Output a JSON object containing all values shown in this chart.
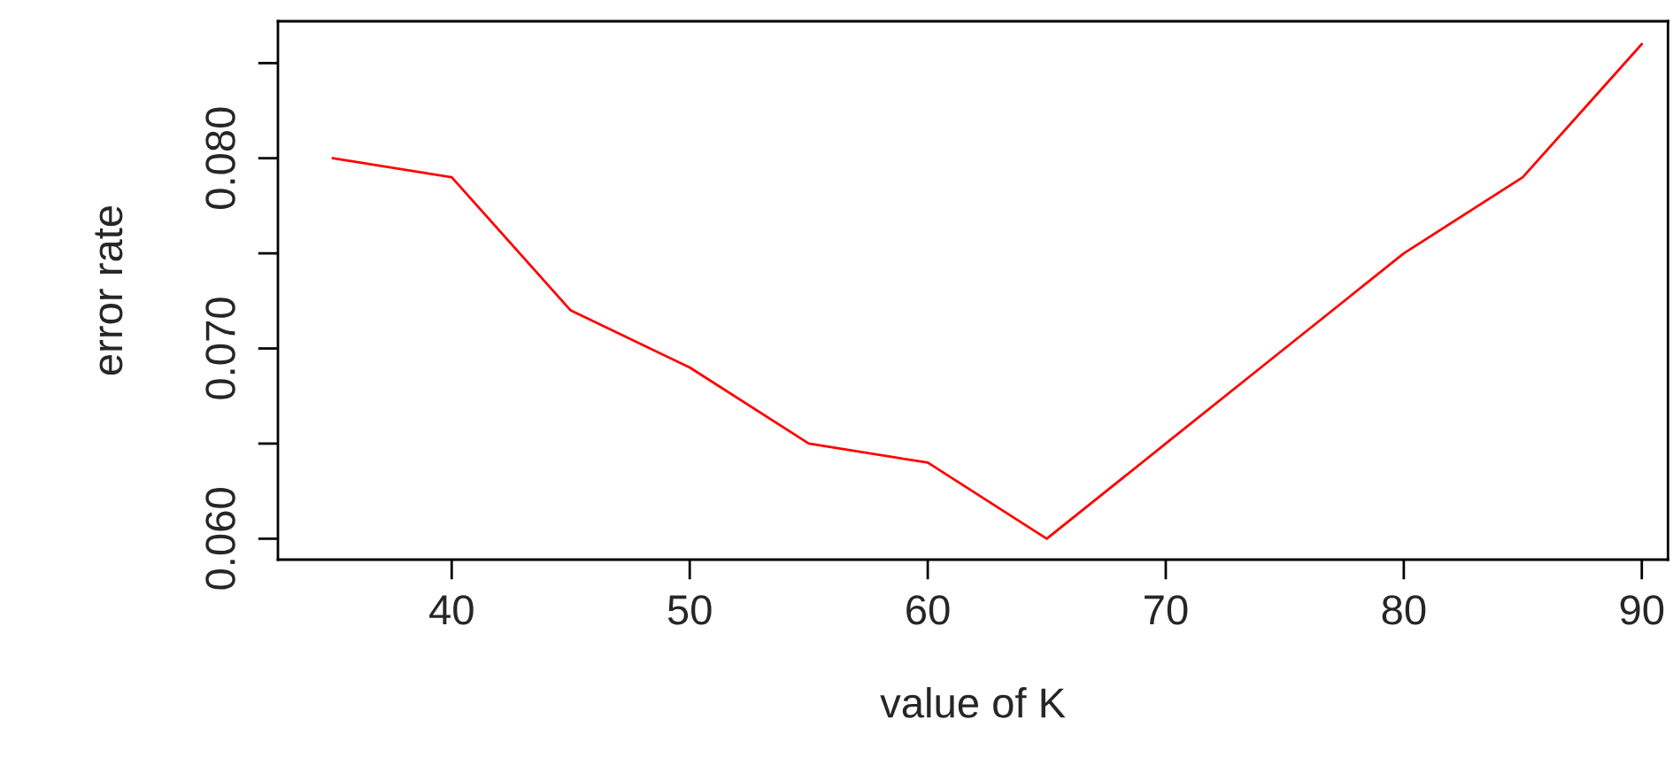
{
  "chart_data": {
    "type": "line",
    "xlabel": "value of K",
    "ylabel": "error rate",
    "x": [
      35,
      40,
      45,
      50,
      55,
      60,
      65,
      70,
      75,
      80,
      85,
      90
    ],
    "series": [
      {
        "color": "#ff0000",
        "values": [
          0.08,
          0.079,
          0.072,
          0.069,
          0.065,
          0.064,
          0.06,
          0.065,
          0.07,
          0.075,
          0.079,
          0.086
        ]
      }
    ],
    "xlim": [
      32.7,
      91.1
    ],
    "ylim": [
      0.0589,
      0.0872
    ],
    "xticks": [
      40,
      50,
      60,
      70,
      80,
      90
    ],
    "yticks": [
      {
        "value": 0.06,
        "label": "0.060"
      },
      {
        "value": 0.065,
        "label": null
      },
      {
        "value": 0.07,
        "label": "0.070"
      },
      {
        "value": 0.075,
        "label": null
      },
      {
        "value": 0.08,
        "label": "0.080"
      },
      {
        "value": 0.085,
        "label": null
      }
    ],
    "grid": false,
    "legend": false,
    "marker": "none",
    "line_style": "solid"
  }
}
